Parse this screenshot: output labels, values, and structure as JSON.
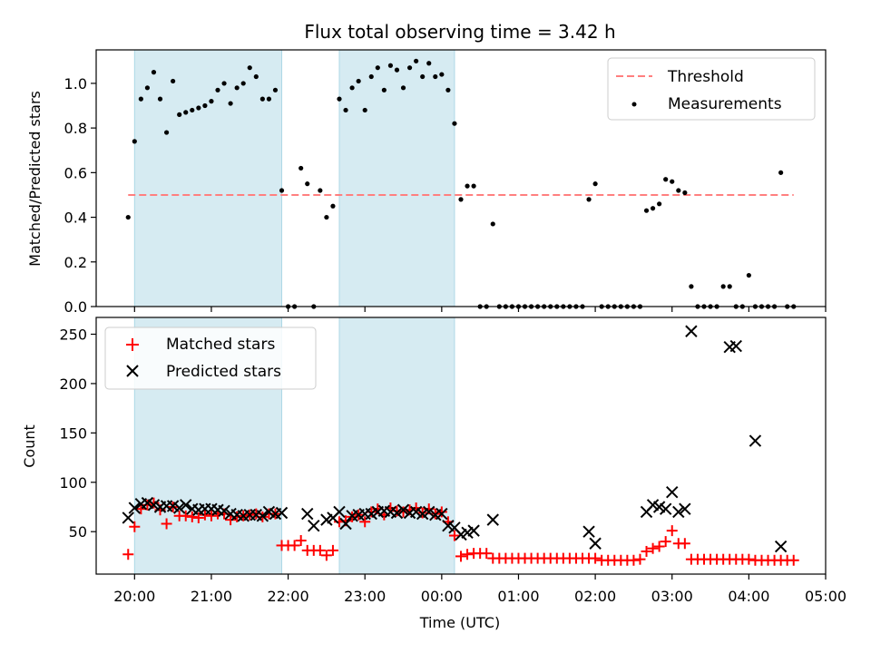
{
  "chart_data": [
    {
      "type": "scatter",
      "title": "Flux total observing time = 3.42 h",
      "ylabel": "Matched/Predicted stars",
      "xlabel": "",
      "ylim": [
        0,
        1.15
      ],
      "yticks": [
        0.0,
        0.2,
        0.4,
        0.6,
        0.8,
        1.0
      ],
      "ytick_labels": [
        "0.0",
        "0.2",
        "0.4",
        "0.6",
        "0.8",
        "1.0"
      ],
      "xlim": [
        "19:30",
        "05:00"
      ],
      "shaded_intervals": [
        [
          "20:00",
          "21:55"
        ],
        [
          "22:40",
          "00:10"
        ]
      ],
      "threshold": {
        "name": "Threshold",
        "value": 0.5,
        "x_range": [
          "19:55",
          "04:35"
        ],
        "color": "#ff7f7f"
      },
      "series": [
        {
          "name": "Measurements",
          "color": "#000000",
          "marker": "dot",
          "x": [
            "19:55",
            "20:00",
            "20:05",
            "20:10",
            "20:15",
            "20:20",
            "20:25",
            "20:30",
            "20:35",
            "20:40",
            "20:45",
            "20:50",
            "20:55",
            "21:00",
            "21:05",
            "21:10",
            "21:15",
            "21:20",
            "21:25",
            "21:30",
            "21:35",
            "21:40",
            "21:45",
            "21:50",
            "21:55",
            "22:00",
            "22:05",
            "22:10",
            "22:15",
            "22:20",
            "22:25",
            "22:30",
            "22:35",
            "22:40",
            "22:45",
            "22:50",
            "22:55",
            "23:00",
            "23:05",
            "23:10",
            "23:15",
            "23:20",
            "23:25",
            "23:30",
            "23:35",
            "23:40",
            "23:45",
            "23:50",
            "23:55",
            "00:00",
            "00:05",
            "00:10",
            "00:15",
            "00:20",
            "00:25",
            "00:30",
            "00:35",
            "00:40",
            "00:45",
            "00:50",
            "00:55",
            "01:00",
            "01:05",
            "01:10",
            "01:15",
            "01:20",
            "01:25",
            "01:30",
            "01:35",
            "01:40",
            "01:45",
            "01:50",
            "01:55",
            "02:00",
            "02:05",
            "02:10",
            "02:15",
            "02:20",
            "02:25",
            "02:30",
            "02:35",
            "02:40",
            "02:45",
            "02:50",
            "02:55",
            "03:00",
            "03:05",
            "03:10",
            "03:15",
            "03:20",
            "03:25",
            "03:30",
            "03:35",
            "03:40",
            "03:45",
            "03:50",
            "03:55",
            "04:00",
            "04:05",
            "04:10",
            "04:15",
            "04:20",
            "04:25",
            "04:30",
            "04:35"
          ],
          "y": [
            0.4,
            0.74,
            0.93,
            0.98,
            1.05,
            0.93,
            0.78,
            1.01,
            0.86,
            0.87,
            0.88,
            0.89,
            0.9,
            0.92,
            0.97,
            1.0,
            0.91,
            0.98,
            1.0,
            1.07,
            1.03,
            0.93,
            0.93,
            0.97,
            0.52,
            0.0,
            0.0,
            0.62,
            0.55,
            0.0,
            0.52,
            0.4,
            0.45,
            0.93,
            0.88,
            0.98,
            1.01,
            0.88,
            1.03,
            1.07,
            0.97,
            1.08,
            1.06,
            0.98,
            1.07,
            1.1,
            1.03,
            1.09,
            1.03,
            1.04,
            0.97,
            0.82,
            0.48,
            0.54,
            0.54,
            0.0,
            0.0,
            0.37,
            0.0,
            0.0,
            0.0,
            0.0,
            0.0,
            0.0,
            0.0,
            0.0,
            0.0,
            0.0,
            0.0,
            0.0,
            0.0,
            0.0,
            0.48,
            0.55,
            0.0,
            0.0,
            0.0,
            0.0,
            0.0,
            0.0,
            0.0,
            0.43,
            0.44,
            0.46,
            0.57,
            0.56,
            0.52,
            0.51,
            0.09,
            0.0,
            0.0,
            0.0,
            0.0,
            0.09,
            0.09,
            0.0,
            0.0,
            0.14,
            0.0,
            0.0,
            0.0,
            0.0,
            0.6,
            0.0,
            0.0
          ]
        }
      ],
      "legend": "top-right"
    },
    {
      "type": "scatter",
      "title": "",
      "ylabel": "Count",
      "xlabel": "Time (UTC)",
      "ylim": [
        7,
        267
      ],
      "yticks": [
        50,
        100,
        150,
        200,
        250
      ],
      "ytick_labels": [
        "50",
        "100",
        "150",
        "200",
        "250"
      ],
      "xlim": [
        "19:30",
        "05:00"
      ],
      "xticks": [
        "20:00",
        "21:00",
        "22:00",
        "23:00",
        "00:00",
        "01:00",
        "02:00",
        "03:00",
        "04:00",
        "05:00"
      ],
      "shaded_intervals": [
        [
          "20:00",
          "21:55"
        ],
        [
          "22:40",
          "00:10"
        ]
      ],
      "series": [
        {
          "name": "Matched stars",
          "color": "#ff0000",
          "marker": "plus",
          "x": [
            "19:55",
            "20:00",
            "20:05",
            "20:10",
            "20:15",
            "20:20",
            "20:25",
            "20:30",
            "20:35",
            "20:40",
            "20:45",
            "20:50",
            "20:55",
            "21:00",
            "21:05",
            "21:10",
            "21:15",
            "21:20",
            "21:25",
            "21:30",
            "21:35",
            "21:40",
            "21:45",
            "21:50",
            "21:55",
            "22:00",
            "22:05",
            "22:10",
            "22:15",
            "22:20",
            "22:25",
            "22:30",
            "22:35",
            "22:40",
            "22:45",
            "22:50",
            "22:55",
            "23:00",
            "23:05",
            "23:10",
            "23:15",
            "23:20",
            "23:25",
            "23:30",
            "23:35",
            "23:40",
            "23:45",
            "23:50",
            "23:55",
            "00:00",
            "00:05",
            "00:10",
            "00:15",
            "00:20",
            "00:25",
            "00:30",
            "00:35",
            "00:40",
            "00:45",
            "00:50",
            "00:55",
            "01:00",
            "01:05",
            "01:10",
            "01:15",
            "01:20",
            "01:25",
            "01:30",
            "01:35",
            "01:40",
            "01:45",
            "01:50",
            "01:55",
            "02:00",
            "02:05",
            "02:10",
            "02:15",
            "02:20",
            "02:25",
            "02:30",
            "02:35",
            "02:40",
            "02:45",
            "02:50",
            "02:55",
            "03:00",
            "03:05",
            "03:10",
            "03:15",
            "03:20",
            "03:25",
            "03:30",
            "03:35",
            "03:40",
            "03:45",
            "03:50",
            "03:55",
            "04:00",
            "04:05",
            "04:10",
            "04:15",
            "04:20",
            "04:25",
            "04:30",
            "04:35"
          ],
          "y": [
            27,
            55,
            73,
            77,
            79,
            72,
            58,
            75,
            66,
            66,
            65,
            64,
            67,
            66,
            68,
            68,
            62,
            65,
            66,
            67,
            68,
            65,
            68,
            68,
            36,
            36,
            36,
            41,
            31,
            31,
            31,
            26,
            31,
            60,
            61,
            65,
            67,
            60,
            70,
            73,
            67,
            74,
            71,
            70,
            72,
            74,
            69,
            73,
            68,
            70,
            60,
            46,
            25,
            27,
            28,
            28,
            28,
            23,
            23,
            23,
            23,
            23,
            23,
            23,
            23,
            23,
            23,
            23,
            23,
            23,
            23,
            23,
            23,
            23,
            21,
            21,
            21,
            21,
            21,
            21,
            22,
            30,
            33,
            35,
            40,
            51,
            38,
            38,
            22,
            22,
            22,
            22,
            22,
            22,
            22,
            22,
            22,
            22,
            21,
            21,
            21,
            21,
            21,
            21,
            21
          ]
        },
        {
          "name": "Predicted stars",
          "color": "#000000",
          "marker": "x",
          "x": [
            "19:55",
            "20:00",
            "20:05",
            "20:10",
            "20:15",
            "20:20",
            "20:25",
            "20:30",
            "20:35",
            "20:40",
            "20:45",
            "20:50",
            "20:55",
            "21:00",
            "21:05",
            "21:10",
            "21:15",
            "21:20",
            "21:25",
            "21:30",
            "21:35",
            "21:40",
            "21:45",
            "21:50",
            "21:55",
            "22:15",
            "22:20",
            "22:30",
            "22:35",
            "22:40",
            "22:45",
            "22:50",
            "22:55",
            "23:00",
            "23:05",
            "23:10",
            "23:15",
            "23:20",
            "23:25",
            "23:30",
            "23:35",
            "23:40",
            "23:45",
            "23:50",
            "23:55",
            "00:00",
            "00:05",
            "00:10",
            "00:15",
            "00:20",
            "00:25",
            "00:40",
            "01:55",
            "02:00",
            "02:40",
            "02:45",
            "02:50",
            "02:55",
            "03:00",
            "03:05",
            "03:10",
            "03:15",
            "03:45",
            "03:50",
            "04:05",
            "04:25"
          ],
          "y": [
            64,
            74,
            78,
            79,
            77,
            75,
            76,
            76,
            74,
            77,
            73,
            72,
            73,
            73,
            72,
            71,
            68,
            67,
            66,
            67,
            67,
            66,
            70,
            68,
            69,
            68,
            56,
            62,
            64,
            70,
            58,
            66,
            67,
            68,
            68,
            70,
            71,
            70,
            69,
            72,
            69,
            70,
            68,
            70,
            67,
            68,
            56,
            54,
            47,
            49,
            51,
            62,
            50,
            38,
            70,
            77,
            75,
            73,
            90,
            70,
            73,
            253,
            237,
            238,
            142,
            35
          ]
        }
      ],
      "legend": "top-left"
    }
  ]
}
